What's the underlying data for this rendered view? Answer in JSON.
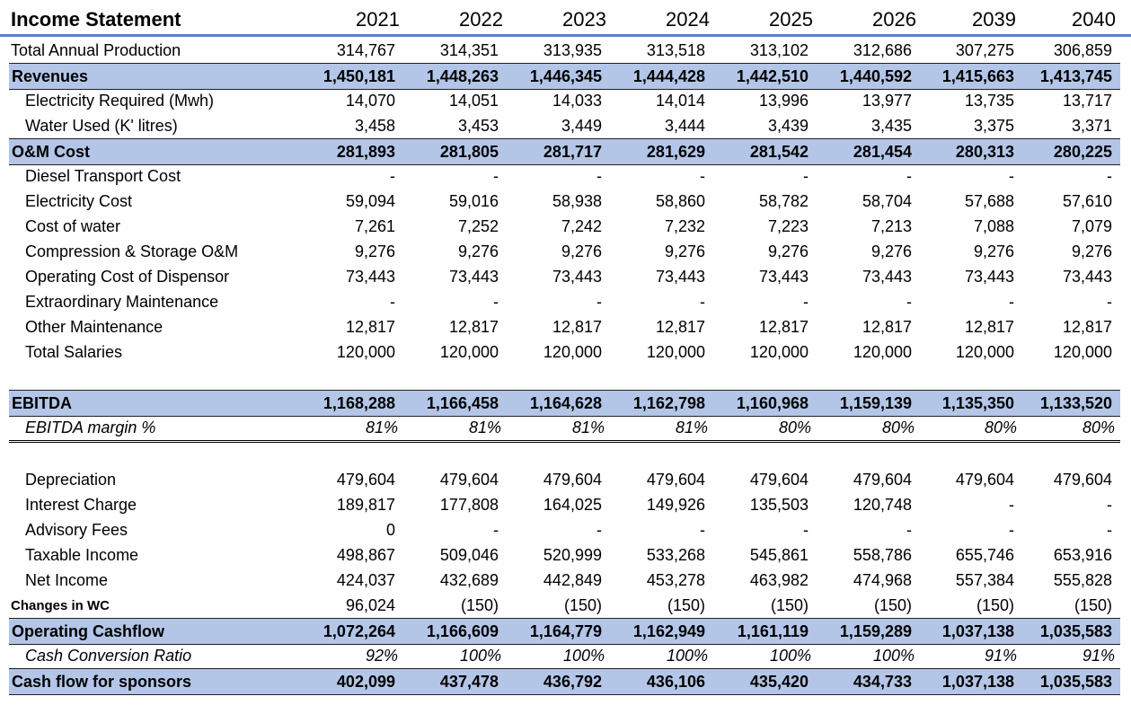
{
  "title": "Income Statement",
  "years": [
    "2021",
    "2022",
    "2023",
    "2024",
    "2025",
    "2026",
    "2039",
    "2040"
  ],
  "rows": [
    {
      "key": "total_annual_production",
      "label": "Total Annual Production",
      "style": "under",
      "top": 0,
      "values": [
        "314,767",
        "314,351",
        "313,935",
        "313,518",
        "313,102",
        "312,686",
        "307,275",
        "306,859"
      ]
    },
    {
      "key": "revenues",
      "label": "Revenues",
      "style": "band",
      "values": [
        "1,450,181",
        "1,448,263",
        "1,446,345",
        "1,444,428",
        "1,442,510",
        "1,440,592",
        "1,415,663",
        "1,413,745"
      ]
    },
    {
      "key": "electricity_required",
      "label": "Electricity Required (Mwh)",
      "style": "ind",
      "values": [
        "14,070",
        "14,051",
        "14,033",
        "14,014",
        "13,996",
        "13,977",
        "13,735",
        "13,717"
      ]
    },
    {
      "key": "water_used",
      "label": "Water Used (K' litres)",
      "style": "ind",
      "values": [
        "3,458",
        "3,453",
        "3,449",
        "3,444",
        "3,439",
        "3,435",
        "3,375",
        "3,371"
      ]
    },
    {
      "key": "om_cost",
      "label": "O&M Cost",
      "style": "band",
      "values": [
        "281,893",
        "281,805",
        "281,717",
        "281,629",
        "281,542",
        "281,454",
        "280,313",
        "280,225"
      ]
    },
    {
      "key": "diesel_transport_cost",
      "label": "Diesel Transport Cost",
      "style": "ind",
      "values": [
        "-",
        "-",
        "-",
        "-",
        "-",
        "-",
        "-",
        "-"
      ]
    },
    {
      "key": "electricity_cost",
      "label": "Electricity Cost",
      "style": "ind",
      "values": [
        "59,094",
        "59,016",
        "58,938",
        "58,860",
        "58,782",
        "58,704",
        "57,688",
        "57,610"
      ]
    },
    {
      "key": "cost_of_water",
      "label": "Cost of water",
      "style": "ind",
      "values": [
        "7,261",
        "7,252",
        "7,242",
        "7,232",
        "7,223",
        "7,213",
        "7,088",
        "7,079"
      ]
    },
    {
      "key": "compression_storage_om",
      "label": "Compression & Storage O&M",
      "style": "ind",
      "values": [
        "9,276",
        "9,276",
        "9,276",
        "9,276",
        "9,276",
        "9,276",
        "9,276",
        "9,276"
      ]
    },
    {
      "key": "operating_cost_dispensor",
      "label": "Operating Cost of Dispensor",
      "style": "ind",
      "values": [
        "73,443",
        "73,443",
        "73,443",
        "73,443",
        "73,443",
        "73,443",
        "73,443",
        "73,443"
      ]
    },
    {
      "key": "extraordinary_maintenance",
      "label": "Extraordinary Maintenance",
      "style": "ind",
      "values": [
        "-",
        "-",
        "-",
        "-",
        "-",
        "-",
        "-",
        "-"
      ]
    },
    {
      "key": "other_maintenance",
      "label": "Other Maintenance",
      "style": "ind",
      "values": [
        "12,817",
        "12,817",
        "12,817",
        "12,817",
        "12,817",
        "12,817",
        "12,817",
        "12,817"
      ]
    },
    {
      "key": "total_salaries",
      "label": "Total Salaries",
      "style": "ind",
      "values": [
        "120,000",
        "120,000",
        "120,000",
        "120,000",
        "120,000",
        "120,000",
        "120,000",
        "120,000"
      ]
    },
    {
      "key": "ebitda",
      "label": "EBITDA",
      "style": "band",
      "values": [
        "1,168,288",
        "1,166,458",
        "1,164,628",
        "1,162,798",
        "1,160,968",
        "1,159,139",
        "1,135,350",
        "1,133,520"
      ]
    },
    {
      "key": "ebitda_margin",
      "label": "EBITDA margin %",
      "style": "margin",
      "values": [
        "81%",
        "81%",
        "81%",
        "81%",
        "80%",
        "80%",
        "80%",
        "80%"
      ]
    },
    {
      "key": "depreciation",
      "label": "Depreciation",
      "style": "ind",
      "values": [
        "479,604",
        "479,604",
        "479,604",
        "479,604",
        "479,604",
        "479,604",
        "479,604",
        "479,604"
      ]
    },
    {
      "key": "interest_charge",
      "label": "Interest Charge",
      "style": "ind",
      "values": [
        "189,817",
        "177,808",
        "164,025",
        "149,926",
        "135,503",
        "120,748",
        "-",
        "-"
      ]
    },
    {
      "key": "advisory_fees",
      "label": "Advisory Fees",
      "style": "ind",
      "values": [
        "0",
        "-",
        "-",
        "-",
        "-",
        "-",
        "-",
        "-"
      ]
    },
    {
      "key": "taxable_income",
      "label": "Taxable Income",
      "style": "ind",
      "values": [
        "498,867",
        "509,046",
        "520,999",
        "533,268",
        "545,861",
        "558,786",
        "655,746",
        "653,916"
      ]
    },
    {
      "key": "net_income",
      "label": "Net Income",
      "style": "ind",
      "values": [
        "424,037",
        "432,689",
        "442,849",
        "453,278",
        "463,982",
        "474,968",
        "557,384",
        "555,828"
      ]
    },
    {
      "key": "changes_in_wc",
      "label": "Changes in WC",
      "style": "small",
      "values": [
        "96,024",
        "(150)",
        "(150)",
        "(150)",
        "(150)",
        "(150)",
        "(150)",
        "(150)"
      ]
    },
    {
      "key": "operating_cashflow",
      "label": "Operating Cashflow",
      "style": "band",
      "values": [
        "1,072,264",
        "1,166,609",
        "1,164,779",
        "1,162,949",
        "1,161,119",
        "1,159,289",
        "1,037,138",
        "1,035,583"
      ]
    },
    {
      "key": "cash_conversion_ratio",
      "label": "Cash Conversion Ratio",
      "style": "ital",
      "values": [
        "92%",
        "100%",
        "100%",
        "100%",
        "100%",
        "100%",
        "91%",
        "91%"
      ]
    },
    {
      "key": "cash_flow_sponsors",
      "label": "Cash flow for sponsors",
      "style": "band",
      "values": [
        "402,099",
        "437,478",
        "436,792",
        "436,106",
        "435,420",
        "434,733",
        "1,037,138",
        "1,035,583"
      ]
    }
  ]
}
